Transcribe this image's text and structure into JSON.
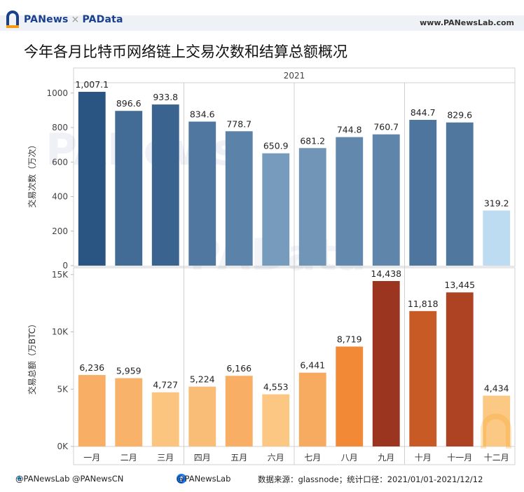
{
  "header": {
    "brand_part1": "PANews",
    "brand_sep": "×",
    "brand_part2": "PAData",
    "site": "www.PANewsLab.com"
  },
  "title": "今年各月比特币网络链上交易次数和结算总额概况",
  "footer": {
    "twitter": "@PANewsLab @PANewsCN",
    "facebook": "@PANewsLab",
    "source": "数据来源：glassnode；统计口径：2021/01/01-2021/12/12"
  },
  "watermark": [
    "PANews",
    "PAData"
  ],
  "chart_data": [
    {
      "type": "bar",
      "column_header": "2021",
      "categories": [
        "一月",
        "二月",
        "三月",
        "四月",
        "五月",
        "六月",
        "七月",
        "八月",
        "九月",
        "十月",
        "十一月",
        "十二月"
      ],
      "values": [
        1007.1,
        896.6,
        933.8,
        834.6,
        778.7,
        650.9,
        681.2,
        744.8,
        760.7,
        844.7,
        829.6,
        319.2
      ],
      "labels": [
        "1,007.1",
        "896.6",
        "933.8",
        "834.6",
        "778.7",
        "650.9",
        "681.2",
        "744.8",
        "760.7",
        "844.7",
        "829.6",
        "319.2"
      ],
      "ylabel": "交易次数（万次）",
      "ylim": [
        0,
        1060
      ],
      "yticks": [
        0,
        200,
        400,
        600,
        800,
        1000
      ],
      "ytick_labels": [
        "0",
        "200",
        "400",
        "600",
        "800",
        "1000"
      ],
      "color_scale": {
        "low": "#bddcf1",
        "high": "#2a5583"
      },
      "grid": "quarter separators"
    },
    {
      "type": "bar",
      "categories": [
        "一月",
        "二月",
        "三月",
        "四月",
        "五月",
        "六月",
        "七月",
        "八月",
        "九月",
        "十月",
        "十一月",
        "十二月"
      ],
      "values": [
        6236,
        5959,
        4727,
        5224,
        6166,
        4553,
        6441,
        8719,
        14438,
        11818,
        13445,
        4434
      ],
      "labels": [
        "6,236",
        "5,959",
        "4,727",
        "5,224",
        "6,166",
        "4,553",
        "6,441",
        "8,719",
        "14,438",
        "11,818",
        "13,445",
        "4,434"
      ],
      "ylabel": "交易总额（万BTC）",
      "ylim": [
        0,
        15600
      ],
      "yticks": [
        0,
        5000,
        10000,
        15000
      ],
      "ytick_labels": [
        "0K",
        "5K",
        "10K",
        "15K"
      ],
      "color_scale": {
        "low": "#fcc985",
        "mid": "#f07e2a",
        "high": "#9c3520"
      },
      "grid": "quarter separators"
    }
  ]
}
